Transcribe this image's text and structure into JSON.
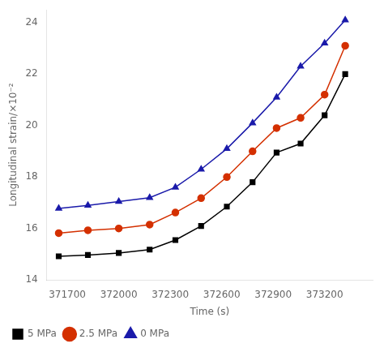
{
  "chart_data": {
    "type": "line",
    "xlabel": "Time (s)",
    "ylabel": "Longitudinal strain/×10⁻²",
    "xlim": [
      371580,
      373480
    ],
    "ylim": [
      14,
      24.5
    ],
    "xticks": [
      371700,
      372000,
      372300,
      372600,
      372900,
      373200
    ],
    "yticks": [
      14,
      16,
      18,
      20,
      22,
      24
    ],
    "grid": false,
    "legend": "bottom",
    "x": [
      371650,
      371820,
      372000,
      372180,
      372330,
      372480,
      372630,
      372780,
      372920,
      373060,
      373200,
      373320
    ],
    "series": [
      {
        "name": "5 MPa",
        "color": "#000000",
        "marker": "square",
        "values": [
          14.92,
          14.97,
          15.05,
          15.18,
          15.55,
          16.1,
          16.85,
          17.8,
          18.95,
          19.3,
          20.4,
          22.0
        ]
      },
      {
        "name": "2.5 MPa",
        "color": "#d43000",
        "marker": "circle",
        "values": [
          15.82,
          15.93,
          16.0,
          16.15,
          16.62,
          17.18,
          18.0,
          19.0,
          19.9,
          20.3,
          21.2,
          23.1
        ]
      },
      {
        "name": "0 MPa",
        "color": "#1a1aaa",
        "marker": "triangle",
        "values": [
          16.78,
          16.9,
          17.05,
          17.2,
          17.6,
          18.3,
          19.1,
          20.1,
          21.1,
          22.3,
          23.2,
          24.1
        ]
      }
    ]
  }
}
